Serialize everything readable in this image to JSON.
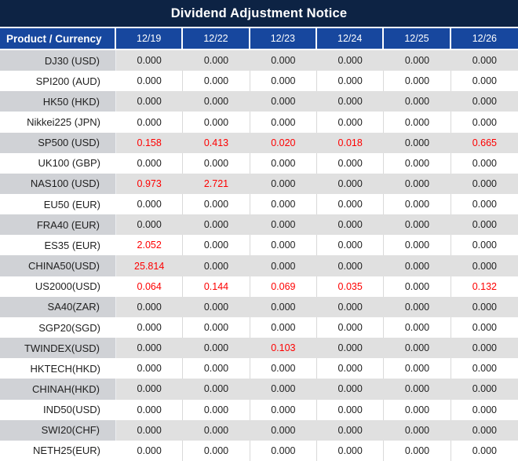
{
  "title": "Dividend Adjustment Notice",
  "colors": {
    "title_bg": "#0d2344",
    "header_bg": "#17479e",
    "row_gray": "#e0e0e0",
    "product_gray": "#d0d2d6",
    "divider": "#d9d9d9",
    "red": "#fe0000",
    "text": "#1f1f1f"
  },
  "table": {
    "product_header": "Product / Currency",
    "date_columns": [
      "12/19",
      "12/22",
      "12/23",
      "12/24",
      "12/25",
      "12/26"
    ],
    "rows": [
      {
        "product": "DJ30 (USD)",
        "values": [
          "0.000",
          "0.000",
          "0.000",
          "0.000",
          "0.000",
          "0.000"
        ]
      },
      {
        "product": "SPI200 (AUD)",
        "values": [
          "0.000",
          "0.000",
          "0.000",
          "0.000",
          "0.000",
          "0.000"
        ]
      },
      {
        "product": "HK50 (HKD)",
        "values": [
          "0.000",
          "0.000",
          "0.000",
          "0.000",
          "0.000",
          "0.000"
        ]
      },
      {
        "product": "Nikkei225 (JPN)",
        "values": [
          "0.000",
          "0.000",
          "0.000",
          "0.000",
          "0.000",
          "0.000"
        ]
      },
      {
        "product": "SP500 (USD)",
        "values": [
          "0.158",
          "0.413",
          "0.020",
          "0.018",
          "0.000",
          "0.665"
        ]
      },
      {
        "product": "UK100 (GBP)",
        "values": [
          "0.000",
          "0.000",
          "0.000",
          "0.000",
          "0.000",
          "0.000"
        ]
      },
      {
        "product": "NAS100 (USD)",
        "values": [
          "0.973",
          "2.721",
          "0.000",
          "0.000",
          "0.000",
          "0.000"
        ]
      },
      {
        "product": "EU50 (EUR)",
        "values": [
          "0.000",
          "0.000",
          "0.000",
          "0.000",
          "0.000",
          "0.000"
        ]
      },
      {
        "product": "FRA40 (EUR)",
        "values": [
          "0.000",
          "0.000",
          "0.000",
          "0.000",
          "0.000",
          "0.000"
        ]
      },
      {
        "product": "ES35 (EUR)",
        "values": [
          "2.052",
          "0.000",
          "0.000",
          "0.000",
          "0.000",
          "0.000"
        ]
      },
      {
        "product": "CHINA50(USD)",
        "values": [
          "25.814",
          "0.000",
          "0.000",
          "0.000",
          "0.000",
          "0.000"
        ]
      },
      {
        "product": "US2000(USD)",
        "values": [
          "0.064",
          "0.144",
          "0.069",
          "0.035",
          "0.000",
          "0.132"
        ]
      },
      {
        "product": "SA40(ZAR)",
        "values": [
          "0.000",
          "0.000",
          "0.000",
          "0.000",
          "0.000",
          "0.000"
        ]
      },
      {
        "product": "SGP20(SGD)",
        "values": [
          "0.000",
          "0.000",
          "0.000",
          "0.000",
          "0.000",
          "0.000"
        ]
      },
      {
        "product": "TWINDEX(USD)",
        "values": [
          "0.000",
          "0.000",
          "0.103",
          "0.000",
          "0.000",
          "0.000"
        ]
      },
      {
        "product": "HKTECH(HKD)",
        "values": [
          "0.000",
          "0.000",
          "0.000",
          "0.000",
          "0.000",
          "0.000"
        ]
      },
      {
        "product": "CHINAH(HKD)",
        "values": [
          "0.000",
          "0.000",
          "0.000",
          "0.000",
          "0.000",
          "0.000"
        ]
      },
      {
        "product": "IND50(USD)",
        "values": [
          "0.000",
          "0.000",
          "0.000",
          "0.000",
          "0.000",
          "0.000"
        ]
      },
      {
        "product": "SWI20(CHF)",
        "values": [
          "0.000",
          "0.000",
          "0.000",
          "0.000",
          "0.000",
          "0.000"
        ]
      },
      {
        "product": "NETH25(EUR)",
        "values": [
          "0.000",
          "0.000",
          "0.000",
          "0.000",
          "0.000",
          "0.000"
        ]
      }
    ]
  }
}
